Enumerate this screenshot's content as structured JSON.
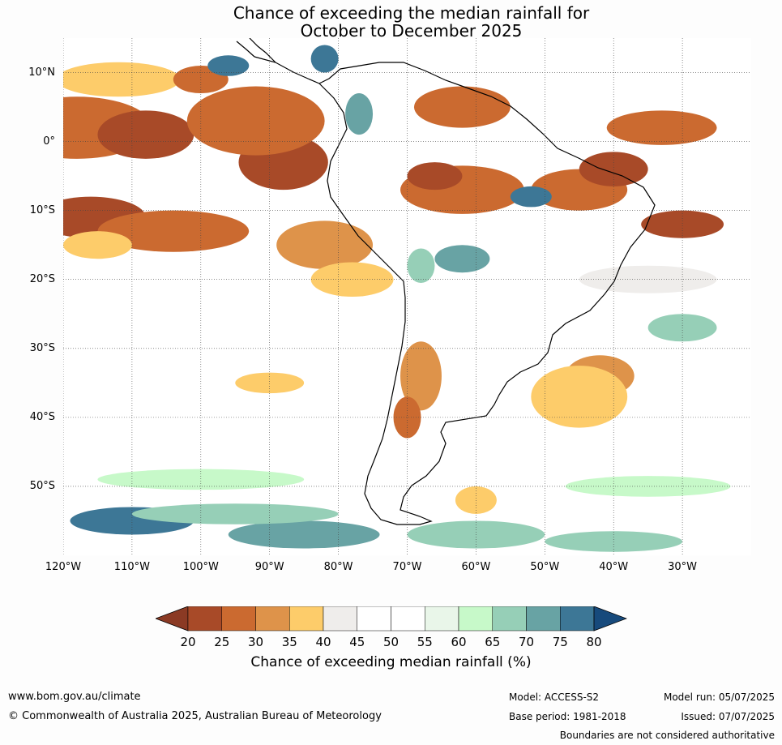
{
  "title_line1": "Chance of exceeding the median rainfall for",
  "title_line2": "October to December 2025",
  "map": {
    "extent": {
      "lon_min": -120,
      "lon_max": -20,
      "lat_min": -60,
      "lat_max": 15
    },
    "lat_labels": [
      {
        "value": 10,
        "label": "10°N"
      },
      {
        "value": 0,
        "label": "0°"
      },
      {
        "value": -10,
        "label": "10°S"
      },
      {
        "value": -20,
        "label": "20°S"
      },
      {
        "value": -30,
        "label": "30°S"
      },
      {
        "value": -40,
        "label": "40°S"
      },
      {
        "value": -50,
        "label": "50°S"
      }
    ],
    "lon_labels": [
      {
        "value": -120,
        "label": "120°W"
      },
      {
        "value": -110,
        "label": "110°W"
      },
      {
        "value": -100,
        "label": "100°W"
      },
      {
        "value": -90,
        "label": "90°W"
      },
      {
        "value": -80,
        "label": "80°W"
      },
      {
        "value": -70,
        "label": "70°W"
      },
      {
        "value": -60,
        "label": "60°W"
      },
      {
        "value": -50,
        "label": "50°W"
      },
      {
        "value": -40,
        "label": "40°W"
      },
      {
        "value": -30,
        "label": "30°W"
      }
    ],
    "regions": [
      {
        "lon": -118,
        "lat": 2,
        "w": 22,
        "h": 9,
        "level": 25
      },
      {
        "lon": -108,
        "lat": 1,
        "w": 14,
        "h": 7,
        "level": 20
      },
      {
        "lon": -88,
        "lat": -3,
        "w": 13,
        "h": 8,
        "level": 20
      },
      {
        "lon": -92,
        "lat": 3,
        "w": 20,
        "h": 10,
        "level": 25
      },
      {
        "lon": -112,
        "lat": 9,
        "w": 18,
        "h": 5,
        "level": 35
      },
      {
        "lon": -100,
        "lat": 9,
        "w": 8,
        "h": 4,
        "level": 25
      },
      {
        "lon": -116,
        "lat": -11,
        "w": 16,
        "h": 6,
        "level": 20
      },
      {
        "lon": -104,
        "lat": -13,
        "w": 22,
        "h": 6,
        "level": 25
      },
      {
        "lon": -115,
        "lat": -15,
        "w": 10,
        "h": 4,
        "level": 35
      },
      {
        "lon": -82,
        "lat": -15,
        "w": 14,
        "h": 7,
        "level": 30
      },
      {
        "lon": -78,
        "lat": -20,
        "w": 12,
        "h": 5,
        "level": 35
      },
      {
        "lon": -62,
        "lat": -7,
        "w": 18,
        "h": 7,
        "level": 25
      },
      {
        "lon": -66,
        "lat": -5,
        "w": 8,
        "h": 4,
        "level": 20
      },
      {
        "lon": -62,
        "lat": 5,
        "w": 14,
        "h": 6,
        "level": 25
      },
      {
        "lon": -45,
        "lat": -7,
        "w": 14,
        "h": 6,
        "level": 25
      },
      {
        "lon": -40,
        "lat": -4,
        "w": 10,
        "h": 5,
        "level": 20
      },
      {
        "lon": -33,
        "lat": 2,
        "w": 16,
        "h": 5,
        "level": 25
      },
      {
        "lon": -30,
        "lat": -12,
        "w": 12,
        "h": 4,
        "level": 20
      },
      {
        "lon": -42,
        "lat": -34,
        "w": 10,
        "h": 6,
        "level": 30
      },
      {
        "lon": -45,
        "lat": -37,
        "w": 14,
        "h": 9,
        "level": 35
      },
      {
        "lon": -68,
        "lat": -34,
        "w": 6,
        "h": 10,
        "level": 30
      },
      {
        "lon": -70,
        "lat": -40,
        "w": 4,
        "h": 6,
        "level": 25
      },
      {
        "lon": -60,
        "lat": -52,
        "w": 6,
        "h": 4,
        "level": 35
      },
      {
        "lon": -90,
        "lat": -35,
        "w": 10,
        "h": 3,
        "level": 35
      },
      {
        "lon": -82,
        "lat": 12,
        "w": 4,
        "h": 4,
        "level": 75
      },
      {
        "lon": -96,
        "lat": 11,
        "w": 6,
        "h": 3,
        "level": 75
      },
      {
        "lon": -77,
        "lat": 4,
        "w": 4,
        "h": 6,
        "level": 70
      },
      {
        "lon": -62,
        "lat": -17,
        "w": 8,
        "h": 4,
        "level": 70
      },
      {
        "lon": -52,
        "lat": -8,
        "w": 6,
        "h": 3,
        "level": 75
      },
      {
        "lon": -68,
        "lat": -18,
        "w": 4,
        "h": 5,
        "level": 65
      },
      {
        "lon": -30,
        "lat": -27,
        "w": 10,
        "h": 4,
        "level": 65
      },
      {
        "lon": -110,
        "lat": -55,
        "w": 18,
        "h": 4,
        "level": 75
      },
      {
        "lon": -85,
        "lat": -57,
        "w": 22,
        "h": 4,
        "level": 70
      },
      {
        "lon": -95,
        "lat": -54,
        "w": 30,
        "h": 3,
        "level": 65
      },
      {
        "lon": -60,
        "lat": -57,
        "w": 20,
        "h": 4,
        "level": 65
      },
      {
        "lon": -40,
        "lat": -58,
        "w": 20,
        "h": 3,
        "level": 65
      },
      {
        "lon": -100,
        "lat": -49,
        "w": 30,
        "h": 3,
        "level": 60
      },
      {
        "lon": -35,
        "lat": -50,
        "w": 24,
        "h": 3,
        "level": 60
      },
      {
        "lon": -100,
        "lat": -28,
        "w": 26,
        "h": 4,
        "level": 45
      },
      {
        "lon": -35,
        "lat": -20,
        "w": 20,
        "h": 4,
        "level": 40
      }
    ]
  },
  "colorbar": {
    "ticks": [
      "20",
      "25",
      "30",
      "35",
      "40",
      "45",
      "50",
      "55",
      "60",
      "65",
      "70",
      "75",
      "80"
    ],
    "colors": [
      "#a84a28",
      "#cb6a30",
      "#de934a",
      "#fdcc6a",
      "#efedeb",
      "#ffffff",
      "#ffffff",
      "#e9f6e9",
      "#c7f9c9",
      "#96cfb7",
      "#68a3a4",
      "#3d7796"
    ],
    "under_color": "#8b3a24",
    "over_color": "#174a7c",
    "label": "Chance of exceeding median rainfall (%)"
  },
  "footer": {
    "website": "www.bom.gov.au/climate",
    "copyright": "© Commonwealth of Australia 2025, Australian Bureau of Meteorology",
    "model": "Model: ACCESS-S2",
    "base_period": "Base period: 1981-2018",
    "model_run": "Model run: 05/07/2025",
    "issued": "Issued: 07/07/2025",
    "disclaimer": "Boundaries are not considered authoritative"
  }
}
